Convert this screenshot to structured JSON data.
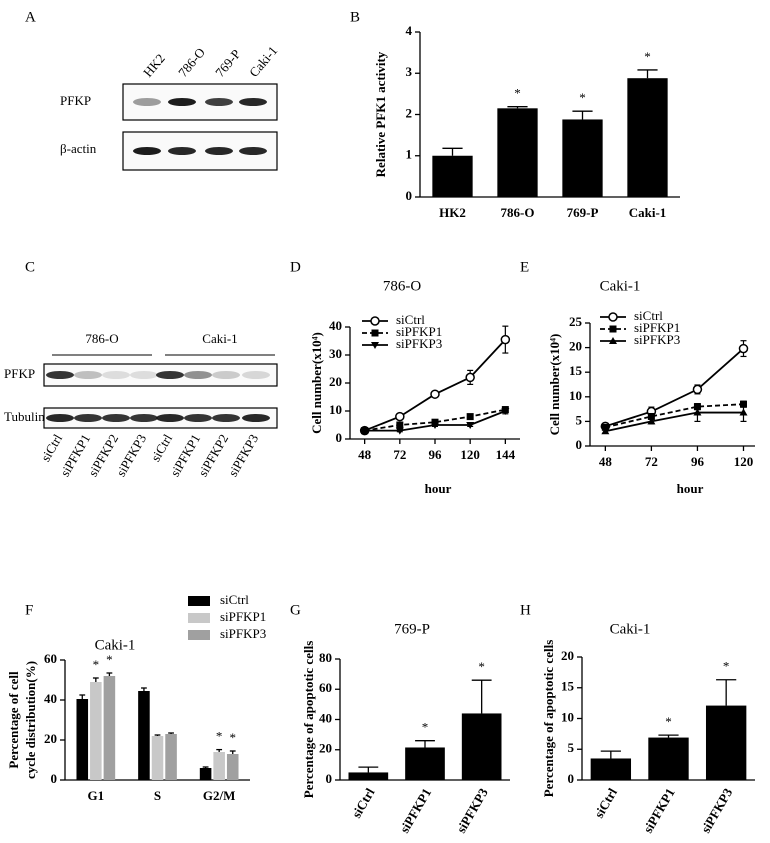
{
  "blots": [
    {
      "panel_label": "A",
      "lanes": [
        "HK2",
        "786-O",
        "769-P",
        "Caki-1"
      ],
      "rows": [
        "PFKP",
        "β-actin"
      ]
    },
    {
      "panel_label": "C",
      "groups": [
        "786-O",
        "Caki-1"
      ],
      "lanes": [
        "siCtrl",
        "siPFKP1",
        "siPFKP2",
        "siPFKP3",
        "siCtrl",
        "siPFKP1",
        "siPFKP2",
        "siPFKP3"
      ],
      "rows": [
        "PFKP",
        "Tubulin"
      ]
    }
  ],
  "chart_data": [
    {
      "type": "bar",
      "panel_label": "B",
      "ylabel": "Relative PFK1 activity",
      "categories": [
        "HK2",
        "786-O",
        "769-P",
        "Caki-1"
      ],
      "values": [
        1.0,
        2.15,
        1.88,
        2.88
      ],
      "errors": [
        0.18,
        0.04,
        0.2,
        0.2
      ],
      "significance": [
        null,
        "*",
        "*",
        "*"
      ],
      "color": "#000000",
      "ylim": [
        0,
        4
      ],
      "yticks": [
        0,
        1,
        2,
        3,
        4
      ]
    },
    {
      "type": "line",
      "panel_label": "D",
      "title": "786-O",
      "ylabel": "Cell number(x10⁴)",
      "xlabel": "hour",
      "x": [
        48,
        72,
        96,
        120,
        144
      ],
      "xlim": [
        38,
        154
      ],
      "xticks": [
        48,
        72,
        96,
        120,
        144
      ],
      "ylim": [
        0,
        40
      ],
      "yticks": [
        0,
        10,
        20,
        30,
        40
      ],
      "series": [
        {
          "name": "siCtrl",
          "color": "#000000",
          "marker": "open-circle",
          "dash": false,
          "values": [
            3,
            8,
            16,
            22,
            35.5
          ],
          "errors": [
            0.3,
            0.5,
            0.6,
            2.5,
            4.8
          ]
        },
        {
          "name": "siPFKP1",
          "color": "#000000",
          "marker": "square",
          "dash": true,
          "values": [
            3,
            5,
            6,
            8,
            10.5
          ],
          "errors": [
            0.3,
            0.5,
            0.5,
            0.8,
            1
          ]
        },
        {
          "name": "siPFKP3",
          "color": "#000000",
          "marker": "triangle-down",
          "dash": false,
          "values": [
            3,
            3,
            5,
            5,
            10
          ],
          "errors": [
            0.3,
            0.4,
            0.5,
            0.5,
            1
          ]
        }
      ]
    },
    {
      "type": "line",
      "panel_label": "E",
      "title": "Caki-1",
      "ylabel": "Cell number(x10⁴)",
      "xlabel": "hour",
      "x": [
        48,
        72,
        96,
        120
      ],
      "xlim": [
        40,
        126
      ],
      "xticks": [
        48,
        72,
        96,
        120
      ],
      "ylim": [
        0,
        25
      ],
      "yticks": [
        0,
        5,
        10,
        15,
        20,
        25
      ],
      "series": [
        {
          "name": "siCtrl",
          "color": "#000000",
          "marker": "open-circle",
          "dash": false,
          "values": [
            4,
            7,
            11.5,
            19.8
          ],
          "errors": [
            0.6,
            0.9,
            0.9,
            1.6
          ]
        },
        {
          "name": "siPFKP1",
          "color": "#000000",
          "marker": "square",
          "dash": true,
          "values": [
            3.8,
            6,
            8,
            8.5
          ],
          "errors": [
            0.4,
            0.5,
            0.6,
            0.6
          ]
        },
        {
          "name": "siPFKP3",
          "color": "#000000",
          "marker": "triangle-up",
          "dash": false,
          "values": [
            3,
            5,
            6.8,
            6.8
          ],
          "errors": [
            0.4,
            0.5,
            1.8,
            1.8
          ]
        }
      ]
    },
    {
      "type": "bar",
      "panel_label": "F",
      "title": "Caki-1",
      "ylabel": [
        "Percentage of cell",
        "cycle distribution(%)"
      ],
      "categories": [
        "G1",
        "S",
        "G2/M"
      ],
      "ylim": [
        0,
        60
      ],
      "yticks": [
        0,
        20,
        40,
        60
      ],
      "series": [
        {
          "name": "siCtrl",
          "color": "#000000",
          "values": [
            40.5,
            44.5,
            6
          ],
          "errors": [
            2,
            1.5,
            0.5
          ],
          "significance": [
            null,
            null,
            null
          ]
        },
        {
          "name": "siPFKP1",
          "color": "#c8c8c8",
          "values": [
            49,
            22,
            14
          ],
          "errors": [
            2,
            0.5,
            1.2
          ],
          "significance": [
            "*",
            null,
            "*"
          ]
        },
        {
          "name": "siPFKP3",
          "color": "#a0a0a0",
          "values": [
            52,
            23,
            13
          ],
          "errors": [
            1.5,
            0.5,
            1.5
          ],
          "significance": [
            "*",
            null,
            "*"
          ]
        }
      ]
    },
    {
      "type": "bar",
      "panel_label": "G",
      "title": "769-P",
      "ylabel": "Percentage of apoptotic cells",
      "categories": [
        "siCtrl",
        "siPFKP1",
        "siPFKP3"
      ],
      "values": [
        5,
        21.5,
        44
      ],
      "errors": [
        3.5,
        4.5,
        22
      ],
      "significance": [
        null,
        "*",
        "*"
      ],
      "color": "#000000",
      "ylim": [
        0,
        80
      ],
      "yticks": [
        0,
        20,
        40,
        60,
        80
      ]
    },
    {
      "type": "bar",
      "panel_label": "H",
      "title": "Caki-1",
      "ylabel": "Percentage of apoptotic cells",
      "categories": [
        "siCtrl",
        "siPFKP1",
        "siPFKP3"
      ],
      "values": [
        3.5,
        6.9,
        12.1
      ],
      "errors": [
        1.2,
        0.4,
        4.2
      ],
      "significance": [
        null,
        "*",
        "*"
      ],
      "color": "#000000",
      "ylim": [
        0,
        20
      ],
      "yticks": [
        0,
        5,
        10,
        15,
        20
      ]
    }
  ]
}
